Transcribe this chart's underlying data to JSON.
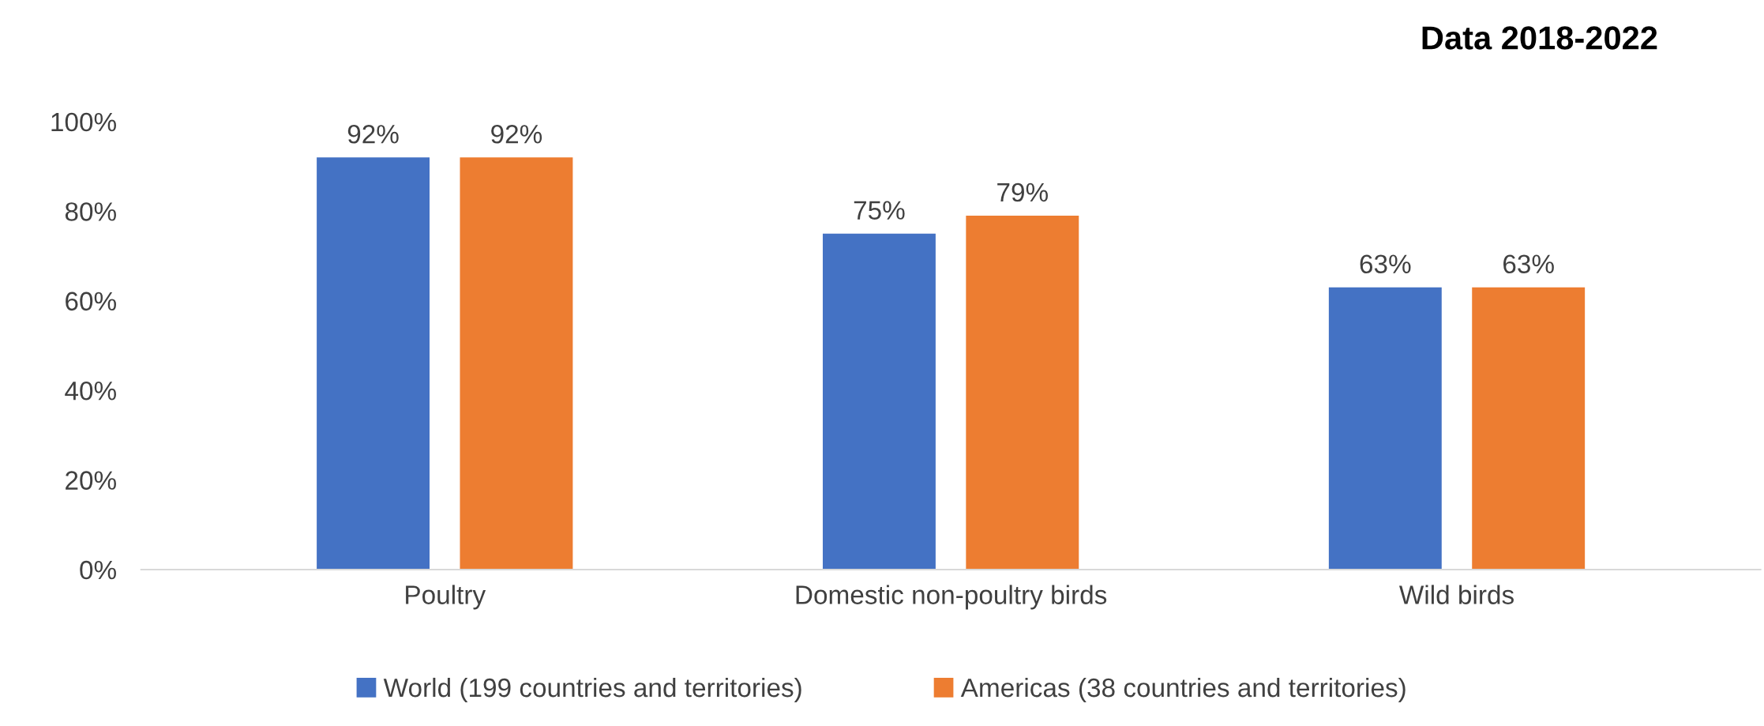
{
  "chart_data": {
    "type": "bar",
    "title": "Data 2018-2022",
    "categories": [
      "Poultry",
      "Domestic non-poultry birds",
      "Wild birds"
    ],
    "series": [
      {
        "name": "World (199 countries and territories)",
        "color": "#4472c4",
        "values": [
          92,
          75,
          63
        ],
        "value_labels": [
          "92%",
          "75%",
          "63%"
        ]
      },
      {
        "name": "Americas (38 countries and territories)",
        "color": "#ed7d31",
        "values": [
          92,
          79,
          63
        ],
        "value_labels": [
          "92%",
          "79%",
          "63%"
        ]
      }
    ],
    "ylim": [
      0,
      100
    ],
    "yticks": [
      {
        "value": 0,
        "label": "0%"
      },
      {
        "value": 20,
        "label": "20%"
      },
      {
        "value": 40,
        "label": "40%"
      },
      {
        "value": 60,
        "label": "60%"
      },
      {
        "value": 80,
        "label": "80%"
      },
      {
        "value": 100,
        "label": "100%"
      }
    ],
    "grid": false,
    "legend": "bottom"
  }
}
